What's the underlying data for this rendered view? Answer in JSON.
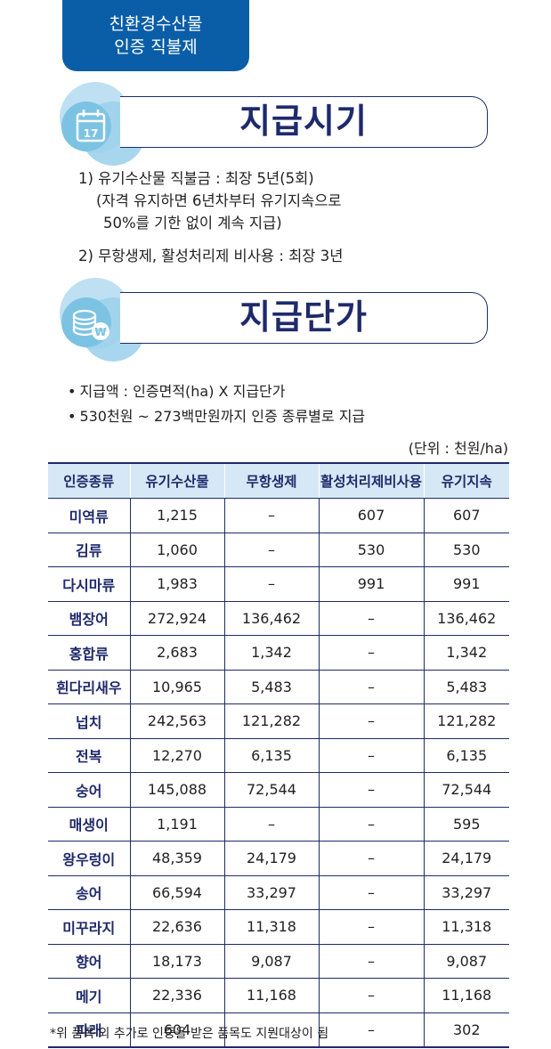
{
  "tag": {
    "line1": "친환경수산물",
    "line2": "인증 직불제"
  },
  "section1": {
    "title": "지급시기",
    "items": [
      "1) 유기수산물 직불금 : 최장 5년(5회)",
      "(자격 유지하면 6년차부터 유기지속으로",
      "50%를 기한 없이 계속 지급)",
      "2) 무항생제, 활성처리제 비사용 : 최장 3년"
    ]
  },
  "section2": {
    "title": "지급단가",
    "bullets": [
      "지급액 : 인증면적(ha) X 지급단가",
      "530천원 ~ 273백만원까지 인증 종류별로 지급"
    ],
    "unit": "(단위 : 천원/ha)"
  },
  "table": {
    "headers": [
      "인증종류",
      "유기수산물",
      "무항생제",
      "활성처리제비사용",
      "유기지속"
    ],
    "rows": [
      [
        "미역류",
        "1,215",
        "–",
        "607",
        "607"
      ],
      [
        "김류",
        "1,060",
        "–",
        "530",
        "530"
      ],
      [
        "다시마류",
        "1,983",
        "–",
        "991",
        "991"
      ],
      [
        "뱀장어",
        "272,924",
        "136,462",
        "–",
        "136,462"
      ],
      [
        "홍합류",
        "2,683",
        "1,342",
        "–",
        "1,342"
      ],
      [
        "흰다리새우",
        "10,965",
        "5,483",
        "–",
        "5,483"
      ],
      [
        "넙치",
        "242,563",
        "121,282",
        "–",
        "121,282"
      ],
      [
        "전복",
        "12,270",
        "6,135",
        "–",
        "6,135"
      ],
      [
        "숭어",
        "145,088",
        "72,544",
        "–",
        "72,544"
      ],
      [
        "매생이",
        "1,191",
        "–",
        "–",
        "595"
      ],
      [
        "왕우렁이",
        "48,359",
        "24,179",
        "–",
        "24,179"
      ],
      [
        "송어",
        "66,594",
        "33,297",
        "–",
        "33,297"
      ],
      [
        "미꾸라지",
        "22,636",
        "11,318",
        "–",
        "11,318"
      ],
      [
        "향어",
        "18,173",
        "9,087",
        "–",
        "9,087"
      ],
      [
        "메기",
        "22,336",
        "11,168",
        "–",
        "11,168"
      ],
      [
        "파래",
        "604",
        "–",
        "–",
        "302"
      ]
    ]
  },
  "note": "*위 품목 외 추가로 인증을 받은 품목도 지원대상이 됨",
  "icons": {
    "section1": "calendar-icon",
    "calendar_day": "17",
    "section2": "coins-won-icon",
    "won_symbol": "₩"
  },
  "colors": {
    "navy": "#1f2a6b",
    "tag_blue": "#0a5ea8",
    "header_bg": "#d6e8f5",
    "bubble_light": "#bfe0f2",
    "bubble_dark": "#7cc3e3"
  }
}
